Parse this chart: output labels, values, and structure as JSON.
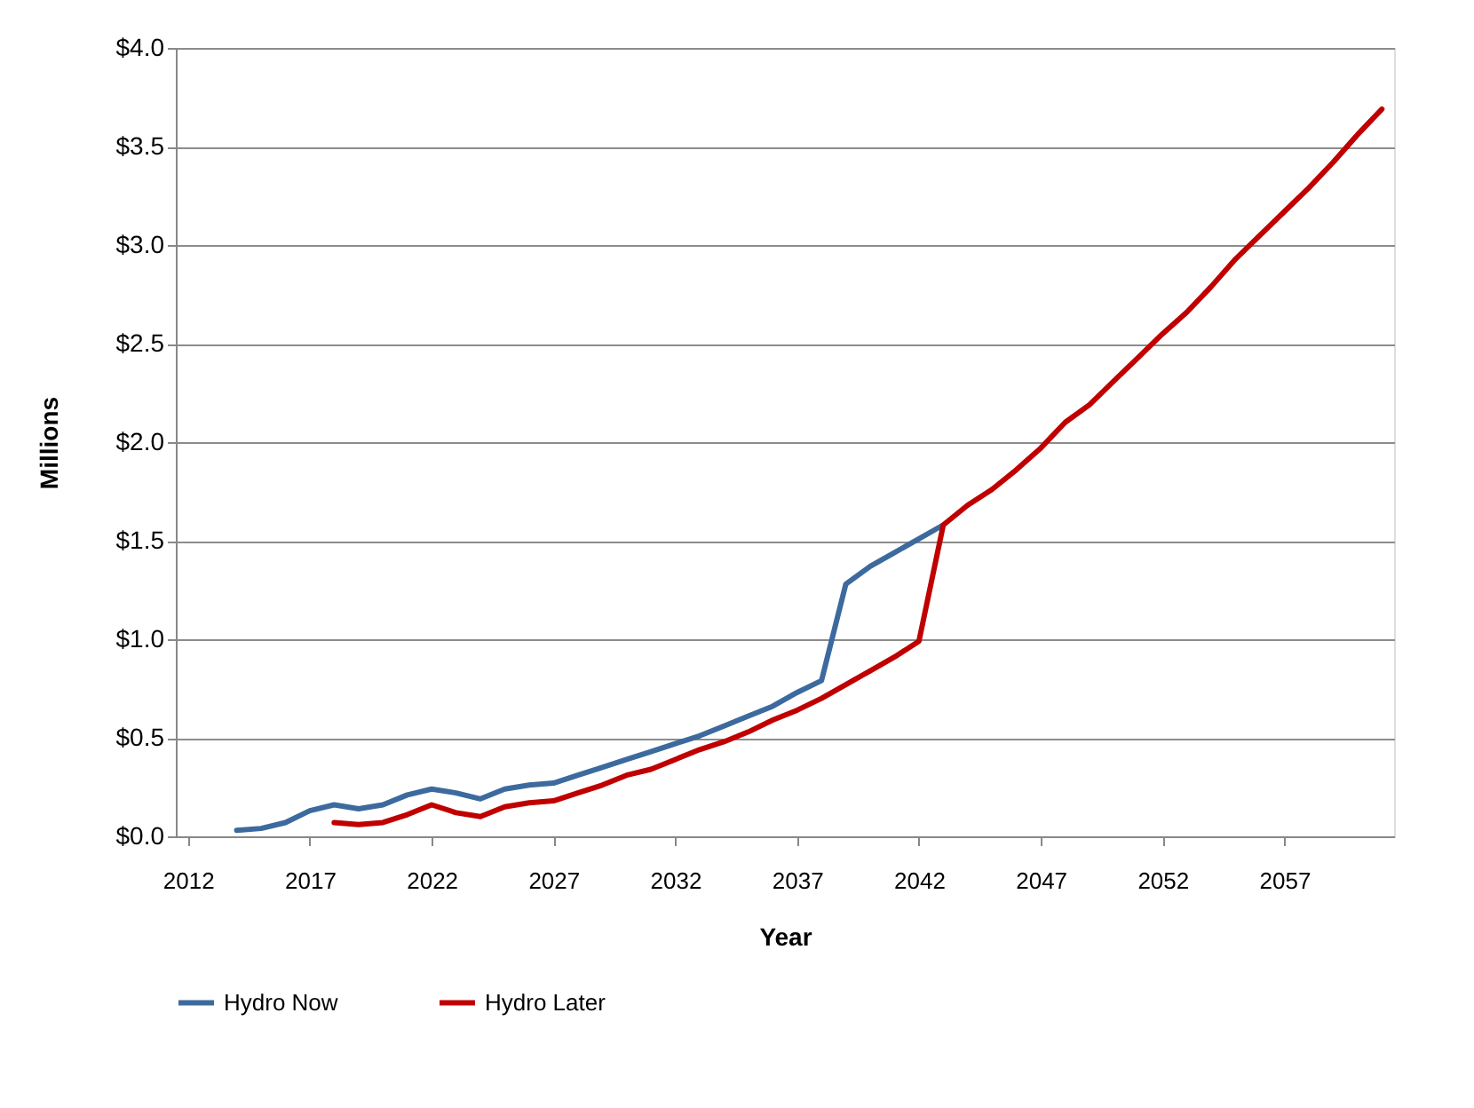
{
  "chart_data": {
    "type": "line",
    "xlabel": "Year",
    "ylabel": "Millions",
    "x": [
      2014,
      2015,
      2016,
      2017,
      2018,
      2019,
      2020,
      2021,
      2022,
      2023,
      2024,
      2025,
      2026,
      2027,
      2028,
      2029,
      2030,
      2031,
      2032,
      2033,
      2034,
      2035,
      2036,
      2037,
      2038,
      2039,
      2040,
      2041,
      2042,
      2043,
      2044,
      2045,
      2046,
      2047,
      2048,
      2049,
      2050,
      2051,
      2052,
      2053,
      2054,
      2055,
      2056,
      2057,
      2058,
      2059,
      2060,
      2061
    ],
    "series": [
      {
        "name": "Hydro Now",
        "color": "#3d6a9e",
        "values": [
          0.03,
          0.04,
          0.07,
          0.13,
          0.16,
          0.14,
          0.16,
          0.21,
          0.24,
          0.22,
          0.19,
          0.24,
          0.26,
          0.27,
          0.31,
          0.35,
          0.39,
          0.43,
          0.47,
          0.51,
          0.56,
          0.61,
          0.66,
          0.73,
          0.79,
          1.28,
          1.37,
          1.44,
          1.51,
          1.58,
          null,
          null,
          null,
          null,
          null,
          null,
          null,
          null,
          null,
          null,
          null,
          null,
          null,
          null,
          null,
          null,
          null,
          null
        ]
      },
      {
        "name": "Hydro Later",
        "color": "#c00000",
        "values": [
          null,
          null,
          null,
          null,
          0.07,
          0.06,
          0.07,
          0.11,
          0.16,
          0.12,
          0.1,
          0.15,
          0.17,
          0.18,
          0.22,
          0.26,
          0.31,
          0.34,
          0.39,
          0.44,
          0.48,
          0.53,
          0.59,
          0.64,
          0.7,
          0.77,
          0.84,
          0.91,
          0.99,
          1.58,
          1.68,
          1.76,
          1.86,
          1.97,
          2.1,
          2.19,
          2.31,
          2.43,
          2.55,
          2.66,
          2.79,
          2.93,
          3.05,
          3.17,
          3.29,
          3.42,
          3.56,
          3.69
        ]
      }
    ],
    "xlim": [
      2011.5,
      2061.5
    ],
    "xticks": [
      2012,
      2017,
      2022,
      2027,
      2032,
      2037,
      2042,
      2047,
      2052,
      2057
    ],
    "ylim": [
      0,
      4
    ],
    "yticks": [
      {
        "value": 0,
        "label": "$0.0"
      },
      {
        "value": 0.5,
        "label": "$0.5"
      },
      {
        "value": 1,
        "label": "$1.0"
      },
      {
        "value": 1.5,
        "label": "$1.5"
      },
      {
        "value": 2,
        "label": "$2.0"
      },
      {
        "value": 2.5,
        "label": "$2.5"
      },
      {
        "value": 3,
        "label": "$3.0"
      },
      {
        "value": 3.5,
        "label": "$3.5"
      },
      {
        "value": 4,
        "label": "$4.0"
      }
    ],
    "grid": "y",
    "legend": "bottom",
    "marker": "none",
    "line_style": "solid"
  }
}
